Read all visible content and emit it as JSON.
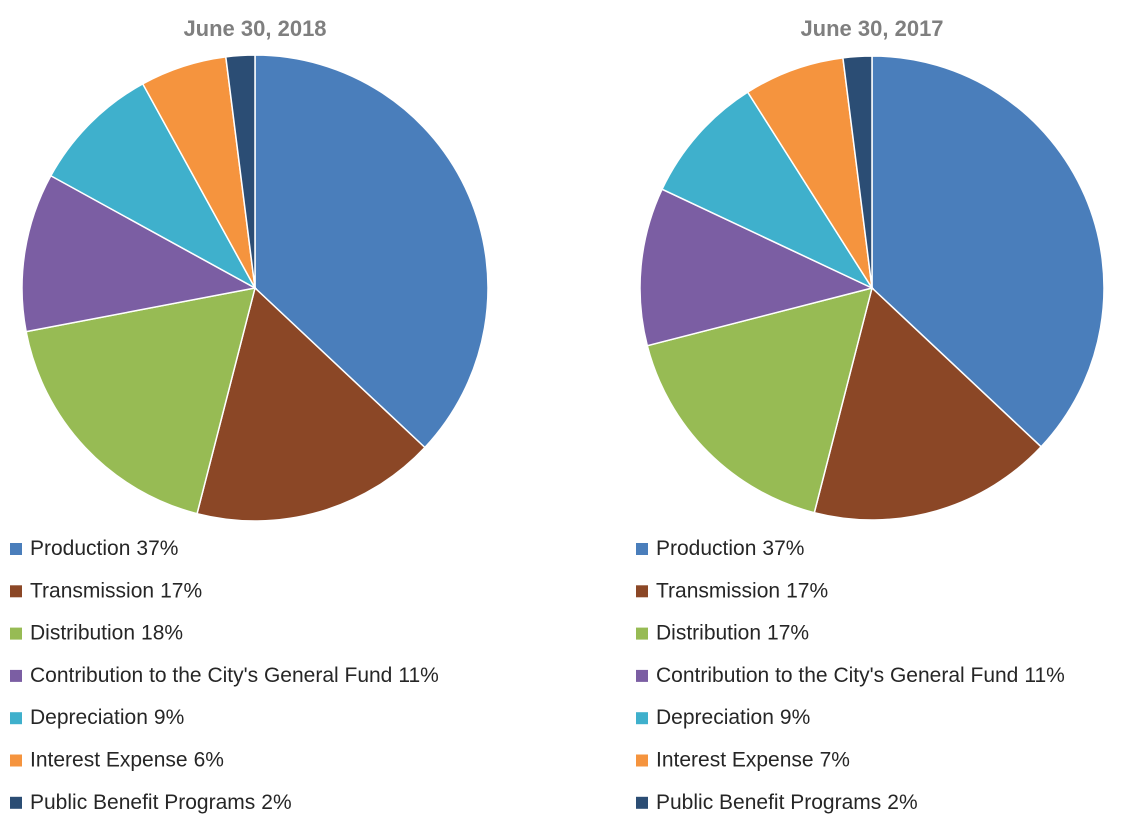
{
  "chart_data": [
    {
      "type": "pie",
      "title": "June 30, 2018",
      "categories": [
        "Production",
        "Transmission",
        "Distribution",
        "Contribution to the City's General Fund",
        "Depreciation",
        "Interest Expense",
        "Public Benefit Programs"
      ],
      "values": [
        37,
        17,
        18,
        11,
        9,
        6,
        2
      ],
      "value_labels": [
        "37%",
        "17%",
        "18%",
        "11%",
        "9%",
        "6%",
        "2%"
      ],
      "colors": [
        "#4a7ebb",
        "#8b4726",
        "#97bb54",
        "#7b5ea3",
        "#3fb0cc",
        "#f5943e",
        "#2b4d74"
      ]
    },
    {
      "type": "pie",
      "title": "June 30, 2017",
      "categories": [
        "Production",
        "Transmission",
        "Distribution",
        "Contribution to the City's General Fund",
        "Depreciation",
        "Interest Expense",
        "Public Benefit Programs"
      ],
      "values": [
        37,
        17,
        17,
        11,
        9,
        7,
        2
      ],
      "value_labels": [
        "37%",
        "17%",
        "17%",
        "11%",
        "9%",
        "7%",
        "2%"
      ],
      "colors": [
        "#4a7ebb",
        "#8b4726",
        "#97bb54",
        "#7b5ea3",
        "#3fb0cc",
        "#f5943e",
        "#2b4d74"
      ]
    }
  ]
}
